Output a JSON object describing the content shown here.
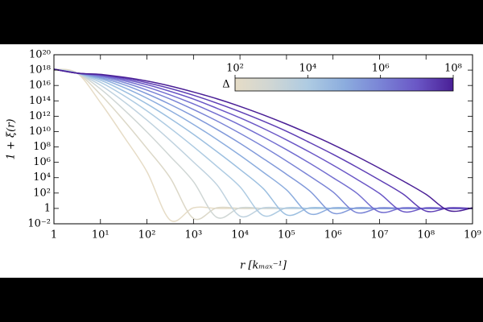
{
  "chart_data": {
    "type": "line",
    "x_label": "r [kₘₐₓ⁻¹]",
    "y_label": "1 + ξ(r)",
    "log_x": true,
    "log_y": true,
    "xlim": [
      1,
      1000000000
    ],
    "ylim": [
      0.01,
      1e+20
    ],
    "xticks": [
      1,
      {
        "value": 10,
        "label": "10¹"
      },
      {
        "value": 100,
        "label": "10²"
      },
      {
        "value": 1000,
        "label": "10³"
      },
      {
        "value": 10000,
        "label": "10⁴"
      },
      {
        "value": 100000,
        "label": "10⁵"
      },
      {
        "value": 1000000,
        "label": "10⁶"
      },
      {
        "value": 10000000,
        "label": "10⁷"
      },
      {
        "value": 100000000,
        "label": "10⁸"
      },
      {
        "value": 1000000000,
        "label": "10⁹"
      }
    ],
    "yticks": [
      {
        "value": 0.01,
        "label": "10⁻²"
      },
      1,
      {
        "value": 100,
        "label": "10²"
      },
      {
        "value": 10000,
        "label": "10⁴"
      },
      {
        "value": 1000000,
        "label": "10⁶"
      },
      {
        "value": 100000000,
        "label": "10⁸"
      },
      {
        "value": 10000000000.0,
        "label": "10¹⁰"
      },
      {
        "value": 1000000000000.0,
        "label": "10¹²"
      },
      {
        "value": 100000000000000.0,
        "label": "10¹⁴"
      },
      {
        "value": 1e+16,
        "label": "10¹⁶"
      },
      {
        "value": 1e+18,
        "label": "10¹⁸"
      },
      {
        "value": 1e+20,
        "label": "10²⁰"
      }
    ],
    "x": [
      1,
      3.16,
      10,
      31.6,
      100,
      316,
      1000,
      3160,
      10000,
      31600,
      100000,
      316000,
      1000000,
      3160000,
      10000000,
      31600000,
      100000000,
      316000000,
      1000000000
    ],
    "series": [
      {
        "color": "#e6dcc6",
        "values": [
          1.3e+18,
          4e+17,
          60000000000000.0,
          2400000000.0,
          59000.0,
          0.03,
          1.2,
          1,
          1,
          1,
          1,
          1,
          1,
          1,
          1,
          1,
          1,
          1,
          1
        ]
      },
      {
        "color": "#dcd8c8",
        "values": [
          1.3e+18,
          4e+17,
          690000000000000.0,
          290000000000.0,
          65000000.0,
          9500.0,
          0.05,
          1.2,
          1,
          1,
          1,
          1,
          1,
          1,
          1,
          1,
          1,
          1,
          1
        ]
      },
      {
        "color": "#cfd6d4",
        "values": [
          1.3e+18,
          4e+17,
          3600000000000000.0,
          7600000000000.0,
          8700000000.0,
          6000000.0,
          3000.0,
          0.07,
          1.2,
          1,
          1,
          1,
          1,
          1,
          1,
          1,
          1,
          1,
          1
        ]
      },
      {
        "color": "#bfd2df",
        "values": [
          1.3e+18,
          4e+17,
          1.1e+16,
          83000000000000.0,
          310000000000.0,
          710000000.0,
          1100000.0,
          1300.0,
          0.1,
          1.2,
          1,
          1,
          1,
          1,
          1,
          1,
          1,
          1,
          1
        ]
      },
      {
        "color": "#aecbe2",
        "values": [
          1.3e+18,
          4e+17,
          2.6e+16,
          500000000000000.0,
          4900000000000.0,
          28000000000.0,
          110000000.0,
          310000.0,
          660,
          0.12,
          1.2,
          1,
          1,
          1,
          1,
          1,
          1,
          1,
          1
        ]
      },
      {
        "color": "#9cbfe0",
        "values": [
          1.3e+18,
          4e+17,
          4.9e+16,
          1900000000000000.0,
          40000000000000.0,
          500000000000.0,
          4400000000.0,
          26000000.0,
          120000.0,
          390,
          0.15,
          1.2,
          1,
          1,
          1,
          1,
          1,
          1,
          1
        ]
      },
      {
        "color": "#8cadde",
        "values": [
          1.3e+18,
          4e+17,
          7.9e+16,
          5600000000000000.0,
          220000000000000.0,
          5200000000000.0,
          85000000000.0,
          980000000.0,
          8300000.0,
          52000.0,
          260,
          0.2,
          1.2,
          1,
          1,
          1,
          1,
          1,
          1
        ]
      },
      {
        "color": "#8199da",
        "values": [
          1.3e+18,
          4e+17,
          1.1e+17,
          1.3e+16,
          830000000000000.0,
          34000000000000.0,
          980000000000.0,
          20000000000.0,
          300000000.0,
          3100000.0,
          28000.0,
          190,
          0.25,
          1.2,
          1,
          1,
          1,
          1,
          1
        ]
      },
      {
        "color": "#7a84d6",
        "values": [
          1.3e+18,
          4e+17,
          1.5e+17,
          2.5e+16,
          2500000000000000.0,
          170000000000000.0,
          7400000000000.0,
          250000000000.0,
          5900000000.0,
          110000000.0,
          1500000.0,
          16000.0,
          140,
          0.3,
          1.2,
          1,
          1,
          1,
          1
        ]
      },
      {
        "color": "#736ed0",
        "values": [
          1.3e+18,
          4e+17,
          1.9e+17,
          4.3e+16,
          6200000000000000.0,
          590000000000000.0,
          40000000000000.0,
          1900000000000.0,
          72000000000.0,
          2000000000.0,
          44000000.0,
          760000.0,
          10000.0,
          110,
          0.35,
          1.2,
          1,
          1,
          1
        ]
      },
      {
        "color": "#6a57c6",
        "values": [
          1.3e+18,
          4e+17,
          2.2e+17,
          6.6e+16,
          1.3e+16,
          1700000000000000.0,
          170000000000000.0,
          11000000000000.0,
          620000000000.0,
          26000000000.0,
          830000000.0,
          21000000.0,
          430000.0,
          6900,
          89,
          0.4,
          1.2,
          1,
          1
        ]
      },
      {
        "color": "#5d3eb5",
        "values": [
          1.3e+18,
          4e+17,
          2.5e+17,
          9.3e+16,
          2.3e+16,
          4100000000000000.0,
          540000000000000.0,
          51000000000000.0,
          3800000000000.0,
          230000000000.0,
          11000000000.0,
          370000000.0,
          11000000.0,
          260000.0,
          5000,
          79,
          0.45,
          1.2,
          1
        ]
      },
      {
        "color": "#4a1f96",
        "values": [
          1.3e+18,
          4e+17,
          2.8e+17,
          1.2e+17,
          3.8e+16,
          8500000000000000.0,
          1400000000000000.0,
          190000000000000.0,
          19000000000000.0,
          1500000000000.0,
          95000000000.0,
          4800000000.0,
          200000000.0,
          6500000.0,
          170000.0,
          3900,
          68,
          0.5,
          1.2
        ]
      }
    ],
    "colorbar": {
      "label": "Δ",
      "lim": [
        100,
        100000000
      ],
      "ticks": [
        {
          "value": 100,
          "label": "10²"
        },
        {
          "value": 10000,
          "label": "10⁴"
        },
        {
          "value": 1000000,
          "label": "10⁶"
        },
        {
          "value": 100000000,
          "label": "10⁸"
        }
      ],
      "colors": [
        "#e6dcc6",
        "#cfd6d4",
        "#aecbe2",
        "#8cadde",
        "#7a84d6",
        "#6a57c6",
        "#4a1f96"
      ]
    }
  }
}
